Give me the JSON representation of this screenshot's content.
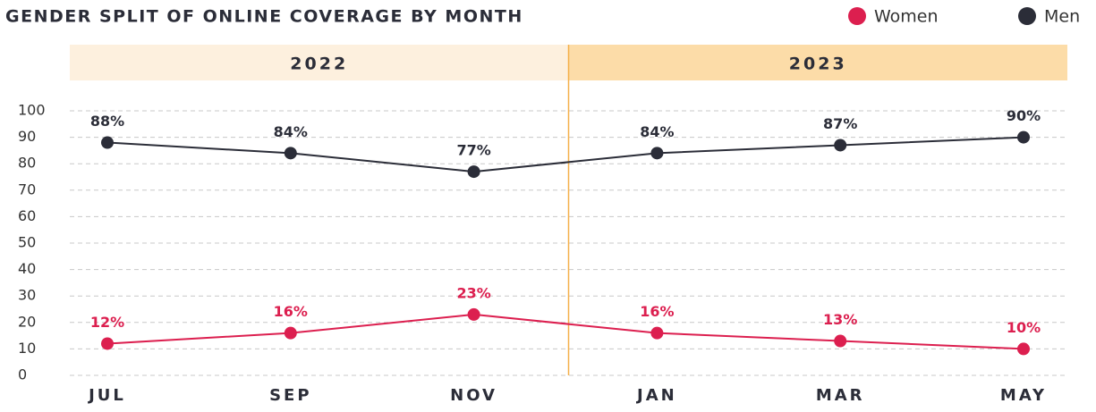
{
  "chart_data": {
    "type": "line",
    "title": "GENDER SPLIT OF ONLINE COVERAGE BY MONTH",
    "categories": [
      "JUL",
      "SEP",
      "NOV",
      "JAN",
      "MAR",
      "MAY"
    ],
    "groups": [
      {
        "label": "2022",
        "color": "#fdf0de"
      },
      {
        "label": "2023",
        "color": "#fcdca8"
      }
    ],
    "divider_color": "#f5b04a",
    "series": [
      {
        "name": "Women",
        "color": "#dc1f4f",
        "values": [
          12,
          16,
          23,
          16,
          13,
          10
        ],
        "value_labels": [
          "12%",
          "16%",
          "23%",
          "16%",
          "13%",
          "10%"
        ]
      },
      {
        "name": "Men",
        "color": "#2b2d38",
        "values": [
          88,
          84,
          77,
          84,
          87,
          90
        ],
        "value_labels": [
          "88%",
          "84%",
          "77%",
          "84%",
          "87%",
          "90%"
        ]
      }
    ],
    "ylim": [
      0,
      100
    ],
    "yticks": [
      0,
      10,
      20,
      30,
      40,
      50,
      60,
      70,
      80,
      90,
      100
    ],
    "grid": true
  }
}
